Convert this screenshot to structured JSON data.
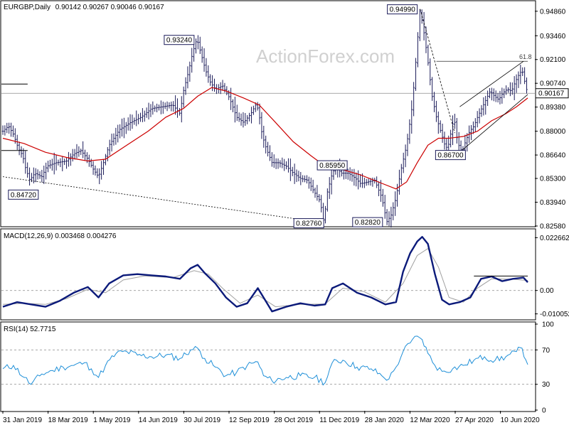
{
  "chart_data": [
    {
      "type": "candlestick",
      "title": "EURGBP,Daily",
      "ohlc_header": "0.90142 0.90267 0.90046 0.90167",
      "last_price_label": "0.90167",
      "watermark": "ActionForex.com",
      "ylim": [
        0.8258,
        0.953
      ],
      "y_ticks": [
        "0.94860",
        "0.93460",
        "0.92100",
        "0.90740",
        "0.89380",
        "0.88000",
        "0.86640",
        "0.85300",
        "0.83940",
        "0.82580"
      ],
      "x_tick_labels": [
        "31 Jan 2019",
        "18 Mar 2019",
        "1 May 2019",
        "14 Jun 2019",
        "30 Jul 2019",
        "12 Sep 2019",
        "28 Oct 2019",
        "11 Dec 2019",
        "28 Jan 2020",
        "12 Mar 2020",
        "27 Apr 2020",
        "10 Jun 2020"
      ],
      "price_series": [
        [
          0,
          0.88
        ],
        [
          8,
          0.883
        ],
        [
          15,
          0.878
        ],
        [
          22,
          0.87
        ],
        [
          28,
          0.866
        ],
        [
          32,
          0.859
        ],
        [
          38,
          0.852
        ],
        [
          45,
          0.856
        ],
        [
          55,
          0.854
        ],
        [
          62,
          0.86
        ],
        [
          75,
          0.862
        ],
        [
          90,
          0.863
        ],
        [
          100,
          0.867
        ],
        [
          110,
          0.869
        ],
        [
          120,
          0.864
        ],
        [
          128,
          0.858
        ],
        [
          135,
          0.854
        ],
        [
          142,
          0.862
        ],
        [
          150,
          0.872
        ],
        [
          165,
          0.881
        ],
        [
          180,
          0.885
        ],
        [
          195,
          0.888
        ],
        [
          210,
          0.893
        ],
        [
          225,
          0.894
        ],
        [
          240,
          0.895
        ],
        [
          250,
          0.89
        ],
        [
          255,
          0.903
        ],
        [
          262,
          0.914
        ],
        [
          268,
          0.925
        ],
        [
          274,
          0.933
        ],
        [
          280,
          0.924
        ],
        [
          286,
          0.915
        ],
        [
          293,
          0.908
        ],
        [
          300,
          0.904
        ],
        [
          310,
          0.906
        ],
        [
          320,
          0.899
        ],
        [
          330,
          0.888
        ],
        [
          340,
          0.885
        ],
        [
          350,
          0.89
        ],
        [
          358,
          0.896
        ],
        [
          362,
          0.889
        ],
        [
          366,
          0.878
        ],
        [
          372,
          0.87
        ],
        [
          380,
          0.862
        ],
        [
          390,
          0.862
        ],
        [
          400,
          0.86
        ],
        [
          410,
          0.856
        ],
        [
          420,
          0.853
        ],
        [
          430,
          0.852
        ],
        [
          440,
          0.845
        ],
        [
          448,
          0.84
        ],
        [
          453,
          0.8276
        ],
        [
          458,
          0.845
        ],
        [
          465,
          0.856
        ],
        [
          470,
          0.8595
        ],
        [
          478,
          0.856
        ],
        [
          488,
          0.856
        ],
        [
          498,
          0.853
        ],
        [
          505,
          0.85
        ],
        [
          515,
          0.851
        ],
        [
          525,
          0.852
        ],
        [
          535,
          0.842
        ],
        [
          542,
          0.8282
        ],
        [
          548,
          0.832
        ],
        [
          555,
          0.842
        ],
        [
          562,
          0.858
        ],
        [
          570,
          0.872
        ],
        [
          578,
          0.895
        ],
        [
          583,
          0.92
        ],
        [
          589,
          0.9499
        ],
        [
          595,
          0.935
        ],
        [
          600,
          0.92
        ],
        [
          606,
          0.9
        ],
        [
          612,
          0.888
        ],
        [
          618,
          0.88
        ],
        [
          624,
          0.872
        ],
        [
          628,
          0.87
        ],
        [
          632,
          0.878
        ],
        [
          637,
          0.888
        ],
        [
          641,
          0.876
        ],
        [
          645,
          0.87
        ],
        [
          649,
          0.869
        ],
        [
          653,
          0.874
        ],
        [
          659,
          0.88
        ],
        [
          665,
          0.883
        ],
        [
          670,
          0.888
        ],
        [
          676,
          0.893
        ],
        [
          682,
          0.898
        ],
        [
          688,
          0.903
        ],
        [
          694,
          0.9
        ],
        [
          700,
          0.898
        ],
        [
          706,
          0.902
        ],
        [
          712,
          0.904
        ],
        [
          718,
          0.903
        ],
        [
          723,
          0.908
        ],
        [
          728,
          0.912
        ],
        [
          733,
          0.915
        ],
        [
          738,
          0.906
        ],
        [
          741,
          0.9017
        ]
      ],
      "ma_series": [
        [
          0,
          0.876
        ],
        [
          30,
          0.873
        ],
        [
          60,
          0.868
        ],
        [
          90,
          0.865
        ],
        [
          120,
          0.863
        ],
        [
          145,
          0.864
        ],
        [
          175,
          0.872
        ],
        [
          205,
          0.88
        ],
        [
          230,
          0.888
        ],
        [
          255,
          0.893
        ],
        [
          275,
          0.9
        ],
        [
          295,
          0.905
        ],
        [
          315,
          0.903
        ],
        [
          340,
          0.899
        ],
        [
          362,
          0.895
        ],
        [
          385,
          0.885
        ],
        [
          410,
          0.874
        ],
        [
          435,
          0.866
        ],
        [
          455,
          0.86
        ],
        [
          480,
          0.858
        ],
        [
          505,
          0.855
        ],
        [
          530,
          0.851
        ],
        [
          555,
          0.847
        ],
        [
          570,
          0.851
        ],
        [
          585,
          0.862
        ],
        [
          600,
          0.872
        ],
        [
          615,
          0.876
        ],
        [
          630,
          0.876
        ],
        [
          650,
          0.877
        ],
        [
          670,
          0.88
        ],
        [
          690,
          0.886
        ],
        [
          710,
          0.89
        ],
        [
          725,
          0.894
        ],
        [
          741,
          0.899
        ]
      ],
      "annotations": [
        {
          "label": "0.84720",
          "value": 0.8472,
          "x": 38
        },
        {
          "label": "0.93240",
          "value": 0.9324,
          "x": 274
        },
        {
          "label": "0.82760",
          "value": 0.8276,
          "x": 453
        },
        {
          "label": "0.85950",
          "value": 0.8595,
          "x": 470
        },
        {
          "label": "0.82820",
          "value": 0.8282,
          "x": 542
        },
        {
          "label": "0.94990",
          "value": 0.9499,
          "x": 589
        },
        {
          "label": "0.86700",
          "value": 0.867,
          "x": 649
        }
      ],
      "fib_label": "61.8",
      "fib_level": 0.92,
      "horizontal_line_level": 0.9017
    },
    {
      "type": "line",
      "title": "MACD(12,26,9) 0.003468 0.004276",
      "ylim": [
        -0.012,
        0.024
      ],
      "y_ticks": [
        "0.022662",
        "0.00",
        "-0.010052"
      ],
      "series": [
        {
          "values": [
            [
              0,
              -0.007
            ],
            [
              20,
              -0.005
            ],
            [
              40,
              -0.006
            ],
            [
              60,
              -0.007
            ],
            [
              80,
              -0.0045
            ],
            [
              100,
              -0.001
            ],
            [
              120,
              0.0015
            ],
            [
              135,
              -0.003
            ],
            [
              150,
              0.003
            ],
            [
              170,
              0.0065
            ],
            [
              190,
              0.007
            ],
            [
              210,
              0.0065
            ],
            [
              230,
              0.006
            ],
            [
              250,
              0.005
            ],
            [
              265,
              0.0095
            ],
            [
              275,
              0.011
            ],
            [
              285,
              0.0075
            ],
            [
              300,
              0.003
            ],
            [
              315,
              -0.003
            ],
            [
              330,
              -0.007
            ],
            [
              345,
              -0.0055
            ],
            [
              360,
              0.001
            ],
            [
              370,
              -0.004
            ],
            [
              380,
              -0.009
            ],
            [
              400,
              -0.007
            ],
            [
              420,
              -0.0055
            ],
            [
              440,
              -0.0065
            ],
            [
              455,
              -0.006
            ],
            [
              465,
              0.001
            ],
            [
              480,
              0.003
            ],
            [
              500,
              -0.001
            ],
            [
              520,
              -0.003
            ],
            [
              540,
              -0.006
            ],
            [
              555,
              -0.005
            ],
            [
              565,
              0.008
            ],
            [
              575,
              0.016
            ],
            [
              585,
              0.021
            ],
            [
              592,
              0.023
            ],
            [
              600,
              0.02
            ],
            [
              610,
              0.007
            ],
            [
              620,
              -0.004
            ],
            [
              630,
              -0.006
            ],
            [
              645,
              -0.005
            ],
            [
              660,
              -0.003
            ],
            [
              675,
              0.005
            ],
            [
              690,
              0.006
            ],
            [
              705,
              0.004
            ],
            [
              720,
              0.005
            ],
            [
              735,
              0.0055
            ],
            [
              741,
              0.0035
            ]
          ]
        },
        {
          "values": [
            [
              0,
              -0.006
            ],
            [
              30,
              -0.0055
            ],
            [
              60,
              -0.006
            ],
            [
              90,
              -0.0035
            ],
            [
              120,
              0.0005
            ],
            [
              145,
              -0.001
            ],
            [
              170,
              0.0045
            ],
            [
              200,
              0.0062
            ],
            [
              240,
              0.0055
            ],
            [
              270,
              0.0085
            ],
            [
              290,
              0.007
            ],
            [
              310,
              0.001
            ],
            [
              335,
              -0.0055
            ],
            [
              360,
              -0.002
            ],
            [
              385,
              -0.007
            ],
            [
              420,
              -0.006
            ],
            [
              455,
              -0.0058
            ],
            [
              480,
              0.001
            ],
            [
              510,
              -0.0005
            ],
            [
              540,
              -0.005
            ],
            [
              565,
              0.003
            ],
            [
              585,
              0.015
            ],
            [
              600,
              0.018
            ],
            [
              615,
              0.01
            ],
            [
              630,
              -0.003
            ],
            [
              650,
              -0.005
            ],
            [
              670,
              0.001
            ],
            [
              690,
              0.005
            ],
            [
              720,
              0.0048
            ],
            [
              741,
              0.0043
            ]
          ]
        }
      ]
    },
    {
      "type": "line",
      "title": "RSI(14) 52.7715",
      "ylim": [
        0,
        100
      ],
      "y_ticks": [
        "100",
        "70",
        "30",
        "0"
      ],
      "series": [
        {
          "values": [
            [
              0,
              48
            ],
            [
              15,
              52
            ],
            [
              30,
              38
            ],
            [
              40,
              30
            ],
            [
              55,
              42
            ],
            [
              70,
              46
            ],
            [
              85,
              50
            ],
            [
              100,
              52
            ],
            [
              115,
              55
            ],
            [
              125,
              48
            ],
            [
              135,
              38
            ],
            [
              145,
              52
            ],
            [
              160,
              66
            ],
            [
              175,
              68
            ],
            [
              190,
              64
            ],
            [
              210,
              62
            ],
            [
              230,
              64
            ],
            [
              250,
              60
            ],
            [
              265,
              70
            ],
            [
              275,
              72
            ],
            [
              285,
              60
            ],
            [
              300,
              50
            ],
            [
              315,
              40
            ],
            [
              330,
              44
            ],
            [
              345,
              52
            ],
            [
              360,
              56
            ],
            [
              368,
              40
            ],
            [
              380,
              34
            ],
            [
              400,
              38
            ],
            [
              420,
              40
            ],
            [
              440,
              38
            ],
            [
              455,
              32
            ],
            [
              465,
              55
            ],
            [
              480,
              58
            ],
            [
              500,
              50
            ],
            [
              520,
              48
            ],
            [
              535,
              40
            ],
            [
              545,
              36
            ],
            [
              555,
              50
            ],
            [
              565,
              68
            ],
            [
              575,
              78
            ],
            [
              585,
              86
            ],
            [
              592,
              82
            ],
            [
              600,
              66
            ],
            [
              610,
              52
            ],
            [
              620,
              45
            ],
            [
              635,
              48
            ],
            [
              650,
              52
            ],
            [
              665,
              58
            ],
            [
              680,
              62
            ],
            [
              695,
              58
            ],
            [
              710,
              62
            ],
            [
              725,
              68
            ],
            [
              733,
              72
            ],
            [
              741,
              53
            ]
          ]
        }
      ]
    }
  ]
}
